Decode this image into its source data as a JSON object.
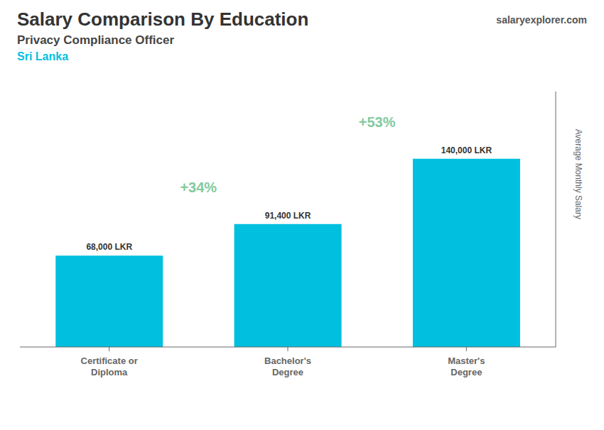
{
  "chart_data": {
    "type": "bar",
    "title": "Salary Comparison By Education",
    "subtitle": [
      "Privacy Compliance Officer",
      "Sri Lanka"
    ],
    "source": "salaryexplorer.com",
    "ylabel": "Average Monthly Salary",
    "categories": [
      "Certificate or\nDiploma",
      "Bachelor's\nDegree",
      "Master's\nDegree"
    ],
    "values": [
      68000,
      91400,
      140000
    ],
    "value_labels": [
      "68,000 LKR",
      "91,400 LKR",
      "140,000 LKR"
    ],
    "data_labels": true,
    "annotations": [
      "+34%",
      "+53%"
    ],
    "color": "#00bfdf",
    "ylim": [
      0,
      190000
    ],
    "grid": false,
    "tick_labels": "x"
  }
}
